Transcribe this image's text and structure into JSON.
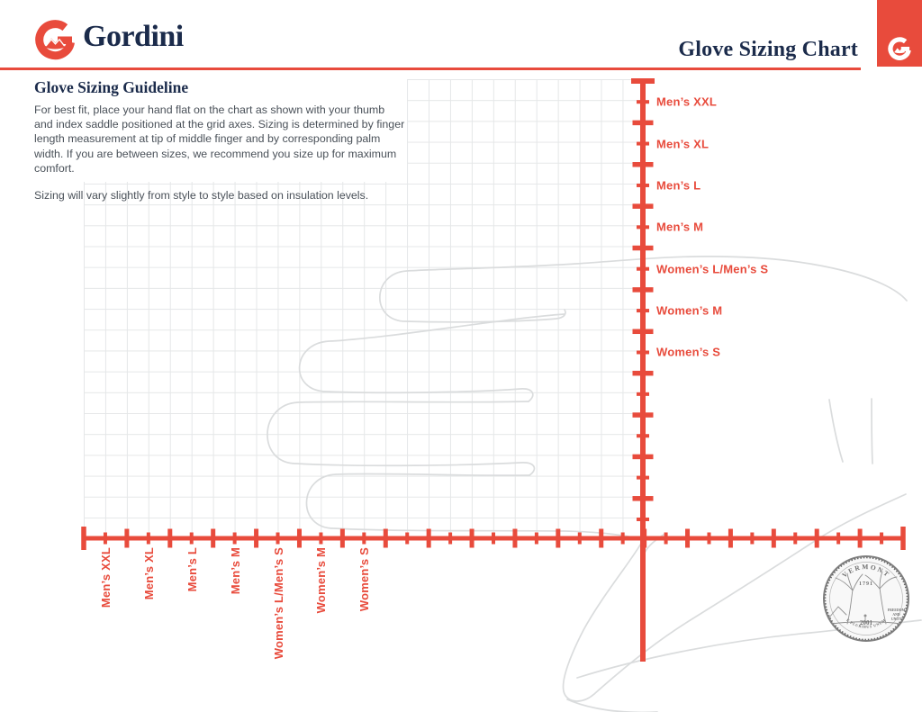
{
  "colors": {
    "accent_red": "#E84B3C",
    "navy": "#1B2B4B",
    "grid_line": "#E5E7E8",
    "hand_outline": "#DADCDD"
  },
  "header": {
    "brand": "Gordini",
    "title": "Glove Sizing Chart"
  },
  "guideline": {
    "heading": "Glove Sizing Guideline",
    "body": "For best fit, place your hand flat on the chart as shown with your thumb and index saddle positioned at the grid axes. Sizing is determined by finger length measurement at tip of middle finger and by corresponding palm width. If you are between sizes, we recommend you size up for maximum comfort.",
    "note": "Sizing will vary slightly from style to style based on insulation levels."
  },
  "chart_data": {
    "type": "sizing-grid",
    "grid": "on",
    "x_axis_labels": [
      "Men’s XXL",
      "Men’s XL",
      "Men’s L",
      "Men’s M",
      "Women’s L/Men’s S",
      "Women’s M",
      "Women’s S"
    ],
    "y_axis_labels": [
      "Men’s XXL",
      "Men’s XL",
      "Men’s L",
      "Men’s M",
      "Women’s L/Men’s S",
      "Women’s M",
      "Women’s S"
    ]
  },
  "coin": {
    "state": "VERMONT",
    "founded": "1791",
    "motto_lines": [
      "FREEDOM",
      "AND",
      "UNITY"
    ],
    "year": "2001",
    "inscription": "E PLURIBUS UNUM"
  }
}
